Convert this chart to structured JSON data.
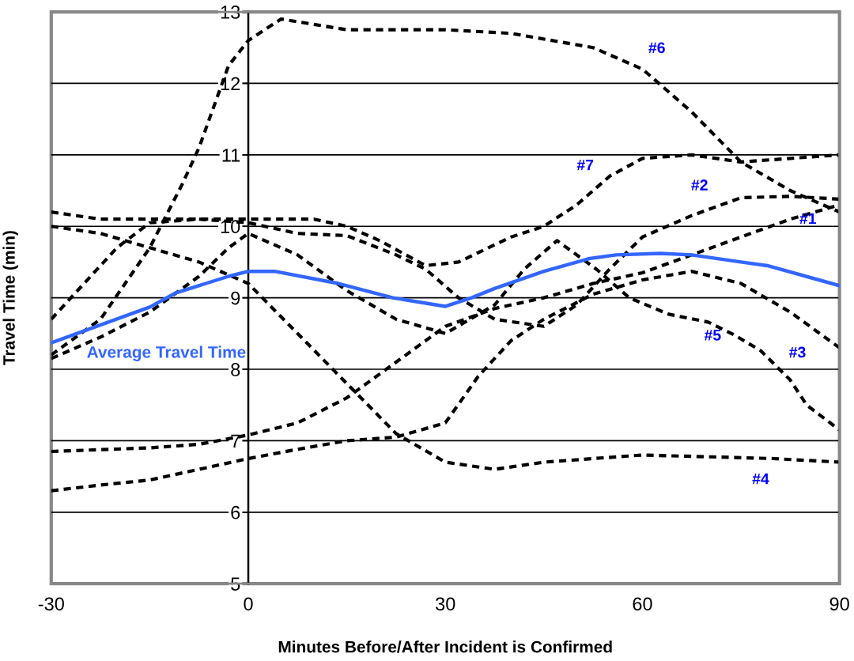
{
  "chart_data": {
    "type": "line",
    "xlabel": "Minutes Before/After Incident is Confirmed",
    "ylabel": "Travel Time (min)",
    "xlim": [
      -30,
      90
    ],
    "xticks": [
      -30,
      0,
      30,
      60,
      90
    ],
    "ylim": [
      5,
      13
    ],
    "yticks": [
      5,
      6,
      7,
      8,
      9,
      10,
      11,
      12,
      13
    ],
    "grid": "y",
    "legend": false,
    "marker": "none",
    "series": [
      {
        "name": "#1",
        "color": "#000000",
        "line_style": "dashed",
        "x": [
          -30,
          -15,
          -7.5,
          0,
          7.5,
          15,
          22.5,
          30,
          37.5,
          45,
          52.5,
          60,
          67.5,
          75,
          82.5,
          90
        ],
        "values": [
          6.85,
          6.9,
          6.95,
          7.08,
          7.25,
          7.6,
          8.1,
          8.6,
          8.85,
          9.0,
          9.2,
          9.35,
          9.6,
          9.85,
          10.1,
          10.3
        ]
      },
      {
        "name": "#2",
        "color": "#000000",
        "line_style": "dashed",
        "x": [
          -30,
          -25,
          -20,
          -15,
          -7.5,
          0,
          7.5,
          15,
          22.5,
          27,
          32,
          37.5,
          45,
          50,
          55,
          60,
          67.5,
          75,
          82.5,
          90
        ],
        "values": [
          8.7,
          9.2,
          9.7,
          10.05,
          10.1,
          10.05,
          9.9,
          9.87,
          9.6,
          9.4,
          9.0,
          8.7,
          8.6,
          8.9,
          9.4,
          9.85,
          10.15,
          10.4,
          10.42,
          10.38
        ]
      },
      {
        "name": "#3",
        "color": "#000000",
        "line_style": "dashed",
        "x": [
          -30,
          -22.5,
          -15,
          -7.5,
          0,
          7.5,
          15,
          22.5,
          30,
          35,
          40,
          45,
          52.5,
          60,
          67.5,
          75,
          82.5,
          90
        ],
        "values": [
          6.3,
          6.38,
          6.45,
          6.6,
          6.75,
          6.88,
          7.0,
          7.05,
          7.25,
          7.9,
          8.4,
          8.7,
          9.05,
          9.25,
          9.37,
          9.2,
          8.8,
          8.3
        ]
      },
      {
        "name": "#4",
        "color": "#000000",
        "line_style": "dashed",
        "x": [
          -30,
          -22.5,
          -15,
          -7.5,
          0,
          7.5,
          15,
          22.5,
          30,
          37.5,
          45,
          60,
          80,
          90
        ],
        "values": [
          10.0,
          9.9,
          9.7,
          9.5,
          9.2,
          8.5,
          7.8,
          7.1,
          6.7,
          6.6,
          6.7,
          6.8,
          6.75,
          6.7
        ]
      },
      {
        "name": "#5",
        "color": "#000000",
        "line_style": "dashed",
        "x": [
          -30,
          -22.5,
          -15,
          -7.5,
          -3,
          0,
          7.5,
          15,
          22.5,
          30,
          37.5,
          42,
          47,
          53,
          58,
          64,
          70,
          74,
          78,
          82.5,
          85,
          90
        ],
        "values": [
          8.15,
          8.45,
          8.8,
          9.3,
          9.7,
          9.9,
          9.6,
          9.1,
          8.7,
          8.5,
          8.9,
          9.4,
          9.8,
          9.4,
          9.0,
          8.77,
          8.66,
          8.48,
          8.26,
          7.85,
          7.5,
          7.15
        ]
      },
      {
        "name": "#6",
        "color": "#000000",
        "line_style": "dashed",
        "x": [
          -30,
          -22.5,
          -15,
          -10,
          -7.5,
          -3,
          0,
          5,
          15,
          30,
          40,
          52.5,
          60,
          67.5,
          75,
          82.5,
          90
        ],
        "values": [
          8.2,
          8.7,
          9.7,
          10.6,
          11.1,
          12.25,
          12.6,
          12.9,
          12.75,
          12.75,
          12.7,
          12.5,
          12.2,
          11.6,
          10.9,
          10.5,
          10.2
        ]
      },
      {
        "name": "#7",
        "color": "#000000",
        "line_style": "dashed",
        "x": [
          -30,
          -22.5,
          -15,
          0,
          10,
          15,
          20,
          27,
          32,
          40,
          45,
          50,
          55,
          60,
          67.5,
          75,
          82.5,
          90
        ],
        "values": [
          10.2,
          10.1,
          10.1,
          10.1,
          10.1,
          10.0,
          9.8,
          9.45,
          9.5,
          9.85,
          10.0,
          10.3,
          10.7,
          10.95,
          11.0,
          10.9,
          10.95,
          11.0
        ]
      },
      {
        "name": "Average Travel Time",
        "color": "#3366ff",
        "line_style": "solid",
        "x": [
          -30,
          -15,
          -11,
          -3,
          0,
          4,
          13.7,
          22,
          30,
          34,
          37.5,
          45,
          52,
          56,
          62.7,
          67.5,
          75,
          79,
          90
        ],
        "values": [
          8.37,
          8.87,
          9.07,
          9.3,
          9.37,
          9.37,
          9.2,
          9.0,
          8.88,
          9.0,
          9.13,
          9.37,
          9.55,
          9.6,
          9.62,
          9.6,
          9.5,
          9.45,
          9.17
        ]
      }
    ]
  }
}
